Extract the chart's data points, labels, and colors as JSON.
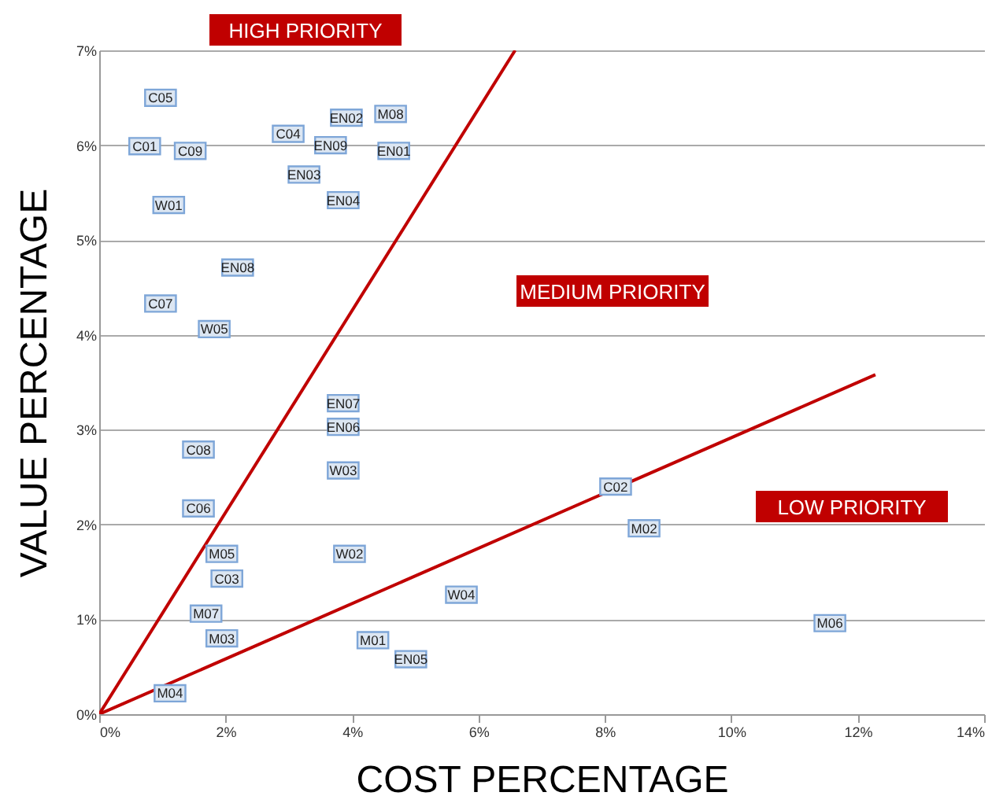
{
  "chart_data": {
    "type": "scatter",
    "xlabel": "COST PERCENTAGE",
    "ylabel": "VALUE PERCENTAGE",
    "xlim": [
      0,
      14
    ],
    "ylim": [
      0,
      7
    ],
    "xticks": [
      {
        "value": 0,
        "label": "0%"
      },
      {
        "value": 2,
        "label": "2%"
      },
      {
        "value": 4,
        "label": "4%"
      },
      {
        "value": 6,
        "label": "6%"
      },
      {
        "value": 8,
        "label": "8%"
      },
      {
        "value": 10,
        "label": "10%"
      },
      {
        "value": 12,
        "label": "12%"
      },
      {
        "value": 14,
        "label": "14%"
      }
    ],
    "yticks": [
      {
        "value": 0,
        "label": "0%"
      },
      {
        "value": 1,
        "label": "1%"
      },
      {
        "value": 2,
        "label": "2%"
      },
      {
        "value": 3,
        "label": "3%"
      },
      {
        "value": 4,
        "label": "4%"
      },
      {
        "value": 5,
        "label": "5%"
      },
      {
        "value": 6,
        "label": "6%"
      },
      {
        "value": 7,
        "label": "7%"
      }
    ],
    "grid": "y",
    "series": [
      {
        "marker": "square",
        "color": "#dce6f2",
        "x": [
          0.97,
          0.72,
          1.44,
          1.1,
          2.99,
          3.91,
          4.61,
          3.66,
          4.66,
          3.24,
          3.86,
          2.19,
          0.97,
          1.82,
          3.86,
          3.86,
          1.57,
          3.86,
          1.57,
          1.94,
          2.02,
          3.96,
          1.69,
          1.94,
          1.12,
          4.33,
          4.93,
          5.73,
          8.17,
          8.62,
          11.56
        ],
        "values": [
          6.5,
          5.99,
          5.94,
          5.37,
          6.12,
          6.29,
          6.33,
          6.0,
          5.94,
          5.69,
          5.42,
          4.71,
          4.33,
          4.06,
          3.28,
          3.03,
          2.79,
          2.57,
          2.17,
          1.69,
          1.43,
          1.69,
          1.06,
          0.8,
          0.22,
          0.78,
          0.58,
          1.26,
          2.4,
          1.96,
          0.96
        ]
      },
      {
        "type": "line",
        "marker": "none",
        "color": "#c00000",
        "x": [
          0,
          6.58
        ],
        "values": [
          0,
          7
        ]
      },
      {
        "type": "line",
        "marker": "none",
        "color": "#c00000",
        "x": [
          0,
          12.28
        ],
        "values": [
          0,
          3.58
        ]
      }
    ],
    "annotations": [
      "HIGH PRIORITY",
      "MEDIUM PRIORITY",
      "LOW PRIORITY",
      {
        "text": "C05",
        "x": 0.97,
        "y": 6.5
      },
      {
        "text": "C01",
        "x": 0.72,
        "y": 5.99
      },
      {
        "text": "C09",
        "x": 1.44,
        "y": 5.94
      },
      {
        "text": "W01",
        "x": 1.1,
        "y": 5.37
      },
      {
        "text": "C04",
        "x": 2.99,
        "y": 6.12
      },
      {
        "text": "EN02",
        "x": 3.91,
        "y": 6.29
      },
      {
        "text": "M08",
        "x": 4.61,
        "y": 6.33
      },
      {
        "text": "EN09",
        "x": 3.66,
        "y": 6.0
      },
      {
        "text": "EN01",
        "x": 4.66,
        "y": 5.94
      },
      {
        "text": "EN03",
        "x": 3.24,
        "y": 5.69
      },
      {
        "text": "EN04",
        "x": 3.86,
        "y": 5.42
      },
      {
        "text": "EN08",
        "x": 2.19,
        "y": 4.71
      },
      {
        "text": "C07",
        "x": 0.97,
        "y": 4.33
      },
      {
        "text": "W05",
        "x": 1.82,
        "y": 4.06
      },
      {
        "text": "EN07",
        "x": 3.86,
        "y": 3.28
      },
      {
        "text": "EN06",
        "x": 3.86,
        "y": 3.03
      },
      {
        "text": "C08",
        "x": 1.57,
        "y": 2.79
      },
      {
        "text": "W03",
        "x": 3.86,
        "y": 2.57
      },
      {
        "text": "C06",
        "x": 1.57,
        "y": 2.17
      },
      {
        "text": "M05",
        "x": 1.94,
        "y": 1.69
      },
      {
        "text": "C03",
        "x": 2.02,
        "y": 1.43
      },
      {
        "text": "W02",
        "x": 3.96,
        "y": 1.69
      },
      {
        "text": "M07",
        "x": 1.69,
        "y": 1.06
      },
      {
        "text": "M03",
        "x": 1.94,
        "y": 0.8
      },
      {
        "text": "M04",
        "x": 1.12,
        "y": 0.22
      },
      {
        "text": "M01",
        "x": 4.33,
        "y": 0.78
      },
      {
        "text": "EN05",
        "x": 4.93,
        "y": 0.58
      },
      {
        "text": "W04",
        "x": 5.73,
        "y": 1.26
      },
      {
        "text": "C02",
        "x": 8.17,
        "y": 2.4
      },
      {
        "text": "M02",
        "x": 8.62,
        "y": 1.96
      },
      {
        "text": "M06",
        "x": 11.56,
        "y": 0.96
      }
    ]
  }
}
